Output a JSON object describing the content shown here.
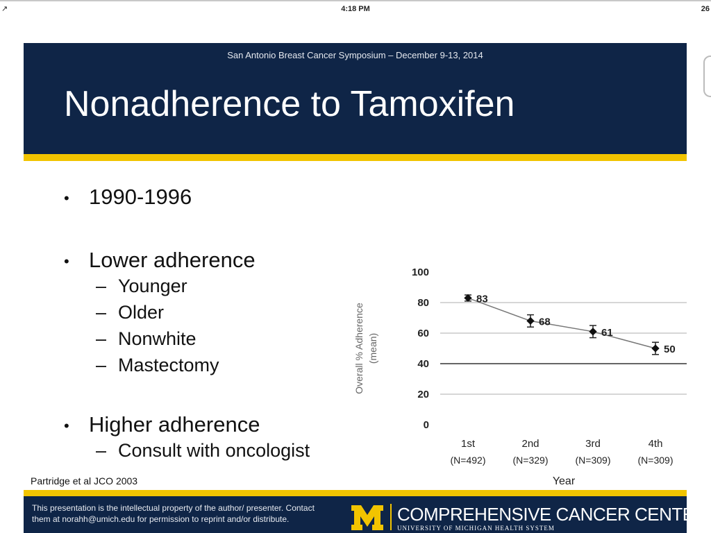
{
  "status_bar": {
    "left": "↗",
    "time": "4:18 PM",
    "right": "26"
  },
  "slide": {
    "conference": "San Antonio Breast Cancer Symposium – December 9-13, 2014",
    "title": "Nonadherence to Tamoxifen",
    "bullets": [
      {
        "text": "1990-1996",
        "subs": []
      },
      {
        "text": "Lower adherence",
        "subs": [
          "Younger",
          "Older",
          "Nonwhite",
          "Mastectomy"
        ]
      },
      {
        "text": "Higher adherence",
        "subs": [
          "Consult with oncologist"
        ]
      }
    ],
    "bullet_symbol": "•",
    "dash_symbol": "–",
    "citation": "Partridge et al JCO 2003",
    "footer": {
      "notice": "This presentation is the intellectual property of the author/ presenter.  Contact them at norahh@umich.edu for permission to   reprint and/or distribute.",
      "org_name": "COMPREHENSIVE CANCER CENTER",
      "org_sub": "UNIVERSITY OF MICHIGAN HEALTH SYSTEM"
    }
  },
  "colors": {
    "navy": "#0f2547",
    "maize": "#f2c400"
  },
  "chart_data": {
    "type": "line",
    "categories": [
      "1st",
      "2nd",
      "3rd",
      "4th"
    ],
    "category_sublabels": [
      "(N=492)",
      "(N=329)",
      "(N=309)",
      "(N=309)"
    ],
    "series": [
      {
        "values": [
          83,
          68,
          61,
          50
        ],
        "error": [
          2,
          4,
          4,
          4
        ]
      }
    ],
    "data_labels": [
      "83",
      "68",
      "61",
      "50"
    ],
    "title": "",
    "xlabel": "Year",
    "ylabel": "Overall % Adherence (mean)",
    "ylim": [
      0,
      100
    ],
    "yticks": [
      "0",
      "20",
      "40",
      "60",
      "80",
      "100"
    ],
    "grid": true
  }
}
